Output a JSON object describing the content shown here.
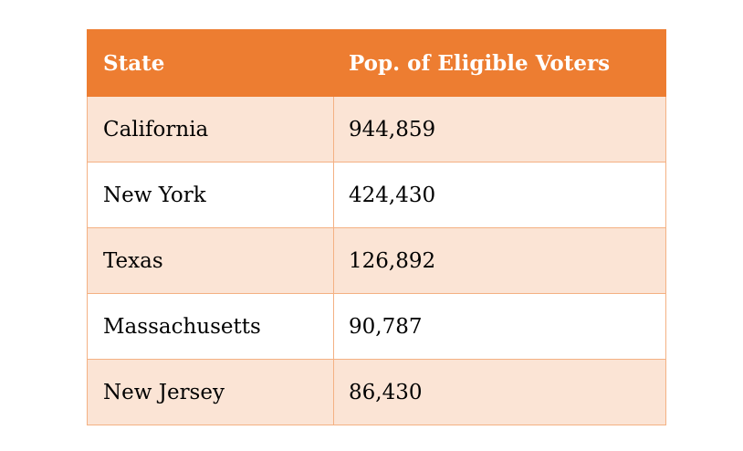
{
  "table": {
    "headers": [
      "State",
      "Pop. of Eligible Voters"
    ],
    "rows": [
      [
        "California",
        "944,859"
      ],
      [
        "New York",
        "424,430"
      ],
      [
        "Texas",
        "126,892"
      ],
      [
        "Massachusetts",
        "90,787"
      ],
      [
        "New Jersey",
        "86,430"
      ]
    ]
  },
  "colors": {
    "header_bg": "#ED7D31",
    "header_text": "#FFFFFF",
    "band_row_bg": "#FBE4D5",
    "border": "#F4B183"
  }
}
